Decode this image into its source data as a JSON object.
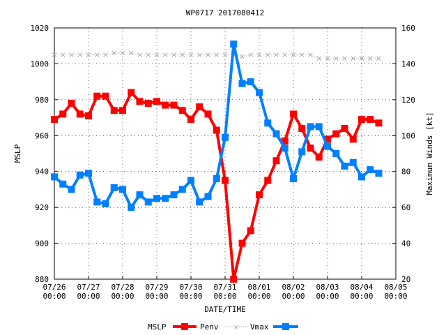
{
  "chart_data": {
    "type": "line",
    "title": "WP0717 2017080412",
    "xlabel": "DATE/TIME",
    "ylabel_left": "MSLP",
    "ylabel_right": "Maximum Winds [kt]",
    "x_ticks": [
      {
        "label": [
          "07/26",
          "00:00"
        ],
        "t": 0
      },
      {
        "label": [
          "07/27",
          "00:00"
        ],
        "t": 24
      },
      {
        "label": [
          "07/28",
          "00:00"
        ],
        "t": 48
      },
      {
        "label": [
          "07/29",
          "00:00"
        ],
        "t": 72
      },
      {
        "label": [
          "07/30",
          "00:00"
        ],
        "t": 96
      },
      {
        "label": [
          "07/31",
          "00:00"
        ],
        "t": 120
      },
      {
        "label": [
          "08/01",
          "00:00"
        ],
        "t": 144
      },
      {
        "label": [
          "08/02",
          "00:00"
        ],
        "t": 168
      },
      {
        "label": [
          "08/03",
          "00:00"
        ],
        "t": 192
      },
      {
        "label": [
          "08/04",
          "00:00"
        ],
        "t": 216
      },
      {
        "label": [
          "08/05",
          "00:00"
        ],
        "t": 240
      }
    ],
    "xlim": [
      0,
      240
    ],
    "y_left": {
      "min": 880,
      "max": 1020,
      "ticks": [
        880,
        900,
        920,
        940,
        960,
        980,
        1000,
        1020
      ]
    },
    "y_right": {
      "min": 20,
      "max": 160,
      "ticks": [
        20,
        40,
        60,
        80,
        100,
        120,
        140,
        160
      ]
    },
    "legend_position": "bottom-center",
    "legend_label_left": "MSLP",
    "series": [
      {
        "name": "Penv",
        "axis": "left",
        "color": "#ff0000",
        "style": "thick-line-square-markers",
        "points": [
          [
            0,
            969
          ],
          [
            6,
            972
          ],
          [
            12,
            978
          ],
          [
            18,
            972
          ],
          [
            24,
            971
          ],
          [
            30,
            982
          ],
          [
            36,
            982
          ],
          [
            42,
            974
          ],
          [
            48,
            974
          ],
          [
            54,
            984
          ],
          [
            60,
            979
          ],
          [
            66,
            978
          ],
          [
            72,
            979
          ],
          [
            78,
            977
          ],
          [
            84,
            977
          ],
          [
            90,
            974
          ],
          [
            96,
            969
          ],
          [
            102,
            976
          ],
          [
            108,
            972
          ],
          [
            114,
            963
          ],
          [
            120,
            935
          ],
          [
            126,
            880
          ],
          [
            132,
            900
          ],
          [
            138,
            907
          ],
          [
            144,
            927
          ],
          [
            150,
            935
          ],
          [
            156,
            946
          ],
          [
            162,
            957
          ],
          [
            168,
            972
          ],
          [
            174,
            964
          ],
          [
            180,
            953
          ],
          [
            186,
            948
          ],
          [
            192,
            958
          ],
          [
            198,
            961
          ],
          [
            204,
            964
          ],
          [
            210,
            958
          ],
          [
            216,
            969
          ],
          [
            222,
            969
          ],
          [
            228,
            967
          ]
        ]
      },
      {
        "name": "",
        "axis": "left",
        "color": "#aaaaaa",
        "style": "thin-dotted-x-markers",
        "points": [
          [
            0,
            1005
          ],
          [
            6,
            1005
          ],
          [
            12,
            1005
          ],
          [
            18,
            1005
          ],
          [
            24,
            1005
          ],
          [
            30,
            1005
          ],
          [
            36,
            1005
          ],
          [
            42,
            1006
          ],
          [
            48,
            1006
          ],
          [
            54,
            1006
          ],
          [
            60,
            1005
          ],
          [
            66,
            1005
          ],
          [
            72,
            1005
          ],
          [
            78,
            1005
          ],
          [
            84,
            1005
          ],
          [
            90,
            1005
          ],
          [
            96,
            1005
          ],
          [
            102,
            1005
          ],
          [
            108,
            1005
          ],
          [
            114,
            1005
          ],
          [
            120,
            1005
          ],
          [
            126,
            1005
          ],
          [
            132,
            1004
          ],
          [
            138,
            1005
          ],
          [
            144,
            1005
          ],
          [
            150,
            1005
          ],
          [
            156,
            1005
          ],
          [
            162,
            1005
          ],
          [
            168,
            1005
          ],
          [
            174,
            1005
          ],
          [
            180,
            1005
          ],
          [
            186,
            1003
          ],
          [
            192,
            1003
          ],
          [
            198,
            1003
          ],
          [
            204,
            1003
          ],
          [
            210,
            1003
          ],
          [
            216,
            1003
          ],
          [
            222,
            1003
          ],
          [
            228,
            1003
          ]
        ]
      },
      {
        "name": "Vmax",
        "axis": "right",
        "color": "#0080ff",
        "style": "thick-line-square-markers",
        "points": [
          [
            0,
            77
          ],
          [
            6,
            73
          ],
          [
            12,
            70
          ],
          [
            18,
            78
          ],
          [
            24,
            79
          ],
          [
            30,
            63
          ],
          [
            36,
            62
          ],
          [
            42,
            71
          ],
          [
            48,
            70
          ],
          [
            54,
            60
          ],
          [
            60,
            67
          ],
          [
            66,
            63
          ],
          [
            72,
            65
          ],
          [
            78,
            65
          ],
          [
            84,
            67
          ],
          [
            90,
            70
          ],
          [
            96,
            75
          ],
          [
            102,
            63
          ],
          [
            108,
            66
          ],
          [
            114,
            76
          ],
          [
            120,
            99
          ],
          [
            126,
            151
          ],
          [
            132,
            129
          ],
          [
            138,
            130
          ],
          [
            144,
            124
          ],
          [
            150,
            107
          ],
          [
            156,
            101
          ],
          [
            162,
            93
          ],
          [
            168,
            76
          ],
          [
            174,
            91
          ],
          [
            180,
            105
          ],
          [
            186,
            105
          ],
          [
            192,
            94
          ],
          [
            198,
            90
          ],
          [
            204,
            83
          ],
          [
            210,
            85
          ],
          [
            216,
            77
          ],
          [
            222,
            81
          ],
          [
            228,
            79
          ]
        ]
      }
    ]
  }
}
